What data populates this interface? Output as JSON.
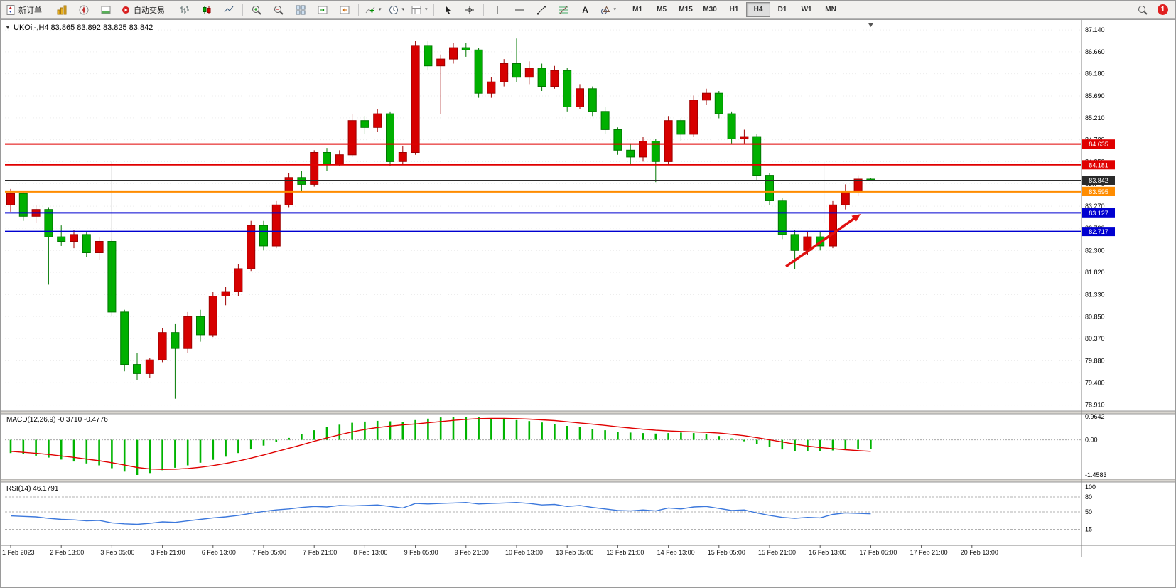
{
  "toolbar": {
    "new_order_label": "新订单",
    "autotrading_label": "自动交易",
    "text_tool_label": "A",
    "timeframes": [
      "M1",
      "M5",
      "M15",
      "M30",
      "H1",
      "H4",
      "D1",
      "W1",
      "MN"
    ],
    "active_timeframe": "H4",
    "notification_count": "1"
  },
  "chart_data": {
    "type": "candlestick",
    "symbol": "UKOil-",
    "period": "H4",
    "title": "UKOil-,H4",
    "ohlc_display": "83.865 83.892 83.825 83.842",
    "current_price": 83.842,
    "up_color": "#d60000",
    "up_stroke": "#9e0000",
    "down_color": "#00b000",
    "down_stroke": "#007800",
    "grid_color": "#ededed",
    "price_axis": [
      87.14,
      86.66,
      86.18,
      85.69,
      85.21,
      84.73,
      84.25,
      83.77,
      83.27,
      82.79,
      82.3,
      81.82,
      81.33,
      80.85,
      80.37,
      79.88,
      79.4,
      78.91
    ],
    "time_labels": [
      "1 Feb 2023",
      "2 Feb 13:00",
      "3 Feb 05:00",
      "3 Feb 21:00",
      "6 Feb 13:00",
      "7 Feb 05:00",
      "7 Feb 21:00",
      "8 Feb 13:00",
      "9 Feb 05:00",
      "9 Feb 21:00",
      "10 Feb 13:00",
      "13 Feb 05:00",
      "13 Feb 21:00",
      "14 Feb 13:00",
      "15 Feb 05:00",
      "15 Feb 21:00",
      "16 Feb 13:00",
      "17 Feb 05:00",
      "17 Feb 21:00",
      "20 Feb 13:00"
    ],
    "label_step": 4,
    "candles": [
      [
        83.3,
        83.65,
        83.15,
        83.55
      ],
      [
        83.55,
        83.6,
        82.95,
        83.05
      ],
      [
        83.05,
        83.3,
        82.9,
        83.2
      ],
      [
        83.2,
        83.25,
        81.55,
        82.6
      ],
      [
        82.6,
        82.85,
        82.4,
        82.5
      ],
      [
        82.5,
        82.75,
        82.35,
        82.65
      ],
      [
        82.65,
        82.7,
        82.15,
        82.25
      ],
      [
        82.25,
        82.6,
        82.1,
        82.5
      ],
      [
        82.5,
        82.55,
        80.85,
        80.95
      ],
      [
        80.95,
        81.0,
        79.65,
        79.8
      ],
      [
        79.8,
        80.05,
        79.45,
        79.6
      ],
      [
        79.6,
        79.95,
        79.5,
        79.9
      ],
      [
        79.9,
        80.6,
        79.85,
        80.5
      ],
      [
        80.5,
        80.7,
        79.05,
        80.15
      ],
      [
        80.15,
        80.95,
        80.05,
        80.85
      ],
      [
        80.85,
        81.0,
        80.3,
        80.45
      ],
      [
        80.45,
        81.4,
        80.4,
        81.3
      ],
      [
        81.3,
        81.5,
        81.1,
        81.4
      ],
      [
        81.4,
        82.0,
        81.3,
        81.9
      ],
      [
        81.9,
        82.95,
        81.85,
        82.85
      ],
      [
        82.85,
        82.95,
        82.3,
        82.4
      ],
      [
        82.4,
        83.4,
        82.35,
        83.3
      ],
      [
        83.3,
        84.0,
        83.25,
        83.9
      ],
      [
        83.9,
        84.05,
        83.6,
        83.75
      ],
      [
        83.75,
        84.5,
        83.7,
        84.45
      ],
      [
        84.45,
        84.55,
        84.05,
        84.2
      ],
      [
        84.2,
        84.5,
        84.15,
        84.4
      ],
      [
        84.4,
        85.3,
        84.35,
        85.15
      ],
      [
        85.15,
        85.25,
        84.85,
        85.0
      ],
      [
        85.0,
        85.4,
        84.9,
        85.3
      ],
      [
        85.3,
        85.35,
        84.15,
        84.25
      ],
      [
        84.25,
        84.6,
        84.2,
        84.45
      ],
      [
        84.45,
        86.9,
        84.4,
        86.8
      ],
      [
        86.8,
        86.9,
        86.25,
        86.35
      ],
      [
        86.35,
        86.6,
        85.3,
        86.5
      ],
      [
        86.5,
        86.85,
        86.4,
        86.75
      ],
      [
        86.75,
        86.85,
        86.55,
        86.7
      ],
      [
        86.7,
        86.75,
        85.65,
        85.75
      ],
      [
        85.75,
        86.1,
        85.65,
        86.0
      ],
      [
        86.0,
        86.5,
        85.9,
        86.4
      ],
      [
        86.4,
        86.95,
        86.0,
        86.1
      ],
      [
        86.1,
        86.45,
        85.95,
        86.3
      ],
      [
        86.3,
        86.4,
        85.8,
        85.9
      ],
      [
        85.9,
        86.35,
        85.85,
        86.25
      ],
      [
        86.25,
        86.3,
        85.35,
        85.45
      ],
      [
        85.45,
        85.95,
        85.4,
        85.85
      ],
      [
        85.85,
        85.9,
        85.25,
        85.35
      ],
      [
        85.35,
        85.45,
        84.85,
        84.95
      ],
      [
        84.95,
        85.0,
        84.4,
        84.5
      ],
      [
        84.5,
        84.65,
        84.2,
        84.35
      ],
      [
        84.35,
        84.8,
        84.25,
        84.7
      ],
      [
        84.7,
        84.75,
        83.8,
        84.25
      ],
      [
        84.25,
        85.25,
        84.2,
        85.15
      ],
      [
        85.15,
        85.2,
        84.7,
        84.85
      ],
      [
        84.85,
        85.7,
        84.8,
        85.6
      ],
      [
        85.6,
        85.85,
        85.5,
        85.75
      ],
      [
        85.75,
        85.8,
        85.2,
        85.3
      ],
      [
        85.3,
        85.35,
        84.65,
        84.75
      ],
      [
        84.75,
        84.95,
        84.65,
        84.8
      ],
      [
        84.8,
        84.85,
        83.85,
        83.95
      ],
      [
        83.95,
        84.0,
        83.3,
        83.4
      ],
      [
        83.4,
        83.45,
        82.55,
        82.65
      ],
      [
        82.65,
        82.75,
        81.9,
        82.3
      ],
      [
        82.3,
        82.7,
        82.2,
        82.6
      ],
      [
        82.6,
        82.7,
        82.3,
        82.4
      ],
      [
        82.4,
        83.4,
        82.35,
        83.3
      ],
      [
        83.3,
        83.75,
        83.2,
        83.6
      ],
      [
        83.6,
        83.95,
        83.5,
        83.865
      ],
      [
        83.865,
        83.892,
        83.825,
        83.842
      ]
    ],
    "hlines": [
      {
        "price": 84.635,
        "color": "#e00000",
        "width": 2,
        "tag_bg": "#e00000"
      },
      {
        "price": 84.181,
        "color": "#e00000",
        "width": 2,
        "tag_bg": "#e00000"
      },
      {
        "price": 83.842,
        "color": "#2a2a2a",
        "width": 1,
        "tag_bg": "#2a2a2a"
      },
      {
        "price": 83.595,
        "color": "#ff8c00",
        "width": 3,
        "tag_bg": "#ff8c00"
      },
      {
        "price": 83.127,
        "color": "#0000d0",
        "width": 2,
        "tag_bg": "#0000d0"
      },
      {
        "price": 82.717,
        "color": "#0000d0",
        "width": 2,
        "tag_bg": "#0000d0"
      }
    ],
    "vlines": [
      {
        "t": 8,
        "p1": 84.25,
        "p2": 81.3
      },
      {
        "t": 64.3,
        "p1": 84.25,
        "p2": 82.9
      }
    ],
    "arrow": {
      "t1": 61.3,
      "p1": 81.95,
      "t2": 67.2,
      "p2": 83.1,
      "color": "#e01010"
    },
    "shift_marker_t": 68,
    "macd": {
      "label": "MACD(12,26,9) -0.3710 -0.4776",
      "axis_labels": [
        "0.9642",
        "0.00",
        "-1.4583"
      ],
      "axis_values": [
        0.9642,
        0,
        -1.4583
      ],
      "histogram_color": "#00b400",
      "signal_color": "#e00000",
      "values": [
        -0.55,
        -0.6,
        -0.66,
        -0.74,
        -0.82,
        -0.9,
        -0.98,
        -1.06,
        -1.18,
        -1.32,
        -1.4583,
        -1.38,
        -1.26,
        -1.16,
        -1.06,
        -0.95,
        -0.83,
        -0.7,
        -0.55,
        -0.4,
        -0.24,
        -0.08,
        0.08,
        0.24,
        0.4,
        0.52,
        0.63,
        0.71,
        0.76,
        0.79,
        0.77,
        0.75,
        0.82,
        0.88,
        0.93,
        0.95,
        0.9642,
        0.94,
        0.9,
        0.86,
        0.82,
        0.78,
        0.72,
        0.66,
        0.58,
        0.52,
        0.46,
        0.4,
        0.34,
        0.3,
        0.28,
        0.26,
        0.28,
        0.3,
        0.28,
        0.24,
        0.16,
        0.06,
        -0.06,
        -0.18,
        -0.3,
        -0.4,
        -0.46,
        -0.48,
        -0.46,
        -0.44,
        -0.42,
        -0.4,
        -0.371
      ],
      "signal": [
        -0.48,
        -0.52,
        -0.56,
        -0.61,
        -0.67,
        -0.73,
        -0.8,
        -0.87,
        -0.95,
        -1.05,
        -1.15,
        -1.21,
        -1.23,
        -1.22,
        -1.19,
        -1.14,
        -1.07,
        -0.98,
        -0.88,
        -0.76,
        -0.63,
        -0.49,
        -0.35,
        -0.21,
        -0.06,
        0.08,
        0.21,
        0.33,
        0.43,
        0.51,
        0.57,
        0.62,
        0.66,
        0.71,
        0.76,
        0.81,
        0.85,
        0.88,
        0.89,
        0.89,
        0.88,
        0.86,
        0.83,
        0.8,
        0.75,
        0.7,
        0.65,
        0.6,
        0.54,
        0.49,
        0.44,
        0.4,
        0.37,
        0.35,
        0.33,
        0.31,
        0.28,
        0.23,
        0.17,
        0.09,
        0.0,
        -0.09,
        -0.18,
        -0.26,
        -0.32,
        -0.37,
        -0.41,
        -0.45,
        -0.4776
      ]
    },
    "rsi": {
      "label": "RSI(14) 46.1791",
      "axis_labels": [
        "100",
        "80",
        "50",
        "15"
      ],
      "axis_values": [
        100,
        80,
        50,
        15
      ],
      "levels": [
        80,
        50,
        15
      ],
      "color": "#3c78dc",
      "values": [
        42,
        41,
        40,
        37,
        35,
        34,
        32,
        33,
        28,
        26,
        25,
        27,
        30,
        29,
        32,
        35,
        38,
        40,
        43,
        47,
        51,
        54,
        56,
        59,
        61,
        60,
        63,
        62,
        63,
        64,
        61,
        58,
        67,
        66,
        67,
        68,
        69,
        66,
        67,
        68,
        69,
        67,
        64,
        65,
        61,
        63,
        59,
        56,
        53,
        52,
        54,
        52,
        58,
        56,
        60,
        61,
        57,
        53,
        54,
        48,
        43,
        39,
        37,
        39,
        38,
        45,
        48,
        47,
        46.18
      ]
    }
  }
}
